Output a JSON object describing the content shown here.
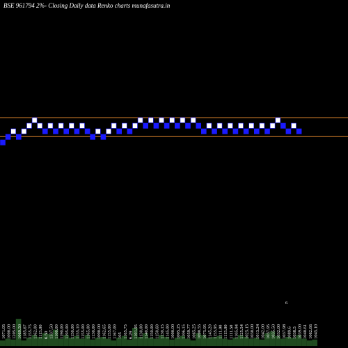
{
  "chart_data": {
    "type": "renko",
    "title": "BSE 961794  2%-  Closing Daily data  Renko  charts munafasutra.in",
    "colors": {
      "background": "#000000",
      "up_brick": "#ffffff",
      "down_brick": "#1a1aff",
      "brick_outline": "#1a1aff",
      "level_line": "#d9822b",
      "volume": "#1f4a1f"
    },
    "bricks": [
      {
        "dir": "down",
        "level": 0
      },
      {
        "dir": "down",
        "level": 1
      },
      {
        "dir": "up",
        "level": 2
      },
      {
        "dir": "down",
        "level": 1
      },
      {
        "dir": "up",
        "level": 2
      },
      {
        "dir": "up",
        "level": 3
      },
      {
        "dir": "up",
        "level": 4
      },
      {
        "dir": "up",
        "level": 3
      },
      {
        "dir": "down",
        "level": 2
      },
      {
        "dir": "up",
        "level": 3
      },
      {
        "dir": "down",
        "level": 2
      },
      {
        "dir": "up",
        "level": 3
      },
      {
        "dir": "down",
        "level": 2
      },
      {
        "dir": "up",
        "level": 3
      },
      {
        "dir": "down",
        "level": 2
      },
      {
        "dir": "up",
        "level": 3
      },
      {
        "dir": "down",
        "level": 2
      },
      {
        "dir": "down",
        "level": 1
      },
      {
        "dir": "up",
        "level": 2
      },
      {
        "dir": "down",
        "level": 1
      },
      {
        "dir": "up",
        "level": 2
      },
      {
        "dir": "up",
        "level": 3
      },
      {
        "dir": "down",
        "level": 2
      },
      {
        "dir": "up",
        "level": 3
      },
      {
        "dir": "down",
        "level": 2
      },
      {
        "dir": "up",
        "level": 3
      },
      {
        "dir": "up",
        "level": 4
      },
      {
        "dir": "down",
        "level": 3
      },
      {
        "dir": "up",
        "level": 4
      },
      {
        "dir": "down",
        "level": 3
      },
      {
        "dir": "up",
        "level": 4
      },
      {
        "dir": "down",
        "level": 3
      },
      {
        "dir": "up",
        "level": 4
      },
      {
        "dir": "down",
        "level": 3
      },
      {
        "dir": "up",
        "level": 4
      },
      {
        "dir": "down",
        "level": 3
      },
      {
        "dir": "up",
        "level": 4
      },
      {
        "dir": "down",
        "level": 3
      },
      {
        "dir": "down",
        "level": 2
      },
      {
        "dir": "up",
        "level": 3
      },
      {
        "dir": "down",
        "level": 2
      },
      {
        "dir": "up",
        "level": 3
      },
      {
        "dir": "down",
        "level": 2
      },
      {
        "dir": "up",
        "level": 3
      },
      {
        "dir": "down",
        "level": 2
      },
      {
        "dir": "up",
        "level": 3
      },
      {
        "dir": "down",
        "level": 2
      },
      {
        "dir": "up",
        "level": 3
      },
      {
        "dir": "down",
        "level": 2
      },
      {
        "dir": "up",
        "level": 3
      },
      {
        "dir": "down",
        "level": 2
      },
      {
        "dir": "up",
        "level": 3
      },
      {
        "dir": "up",
        "level": 4
      },
      {
        "dir": "down",
        "level": 3
      },
      {
        "dir": "down",
        "level": 2
      },
      {
        "dir": "up",
        "level": 3
      },
      {
        "dir": "down",
        "level": 2
      }
    ],
    "level_lines": [
      5,
      1.6
    ],
    "volume_labels": [
      "1071.05",
      "1000.00",
      "1205.00",
      "1069.50",
      "1185.67",
      "1155.75",
      "1162.00",
      "1115.00",
      "6.50",
      "1337.50",
      "1100.00",
      "1190.00",
      "1195.00",
      "1150.00",
      "1155.10",
      "1155.00",
      "1165.00",
      "1130.00",
      "1090.00",
      "1162.65",
      "1155.00",
      "1167.00",
      "105",
      "1165.75",
      "6.29",
      "1101.95",
      "1130.00",
      "1140.00",
      "1150.00",
      "1150.60",
      "1130.15",
      "1145.00",
      "1000.00",
      "1005.25",
      "1106.15",
      "1059.77",
      "1065.25",
      "1090.55",
      "1075.95",
      "1145.20",
      "1155.95",
      "1111.00",
      "1115.00",
      "1111.50",
      "1105.94",
      "1125.54",
      "1025.15",
      "1030.00",
      "1013.24",
      "1042.00",
      "1037.95",
      "1035.50",
      "1032.00",
      "1037.98",
      "1089.6",
      "1038.5",
      "1039.00",
      "1040.61",
      "1062.66",
      "1045.10"
    ],
    "volume_values": [
      6,
      8,
      7,
      30,
      6,
      9,
      12,
      10,
      14,
      13,
      18,
      8,
      12,
      9,
      11,
      8,
      12,
      7,
      9,
      10,
      8,
      6,
      9,
      11,
      7,
      20,
      10,
      14,
      9,
      8,
      12,
      10,
      7,
      9,
      11,
      8,
      6,
      14,
      12,
      9,
      10,
      11,
      8,
      7,
      9,
      12,
      10,
      8,
      9,
      7,
      14,
      16,
      11,
      8,
      10,
      9,
      12,
      8,
      6,
      7
    ],
    "annotation": "6"
  }
}
